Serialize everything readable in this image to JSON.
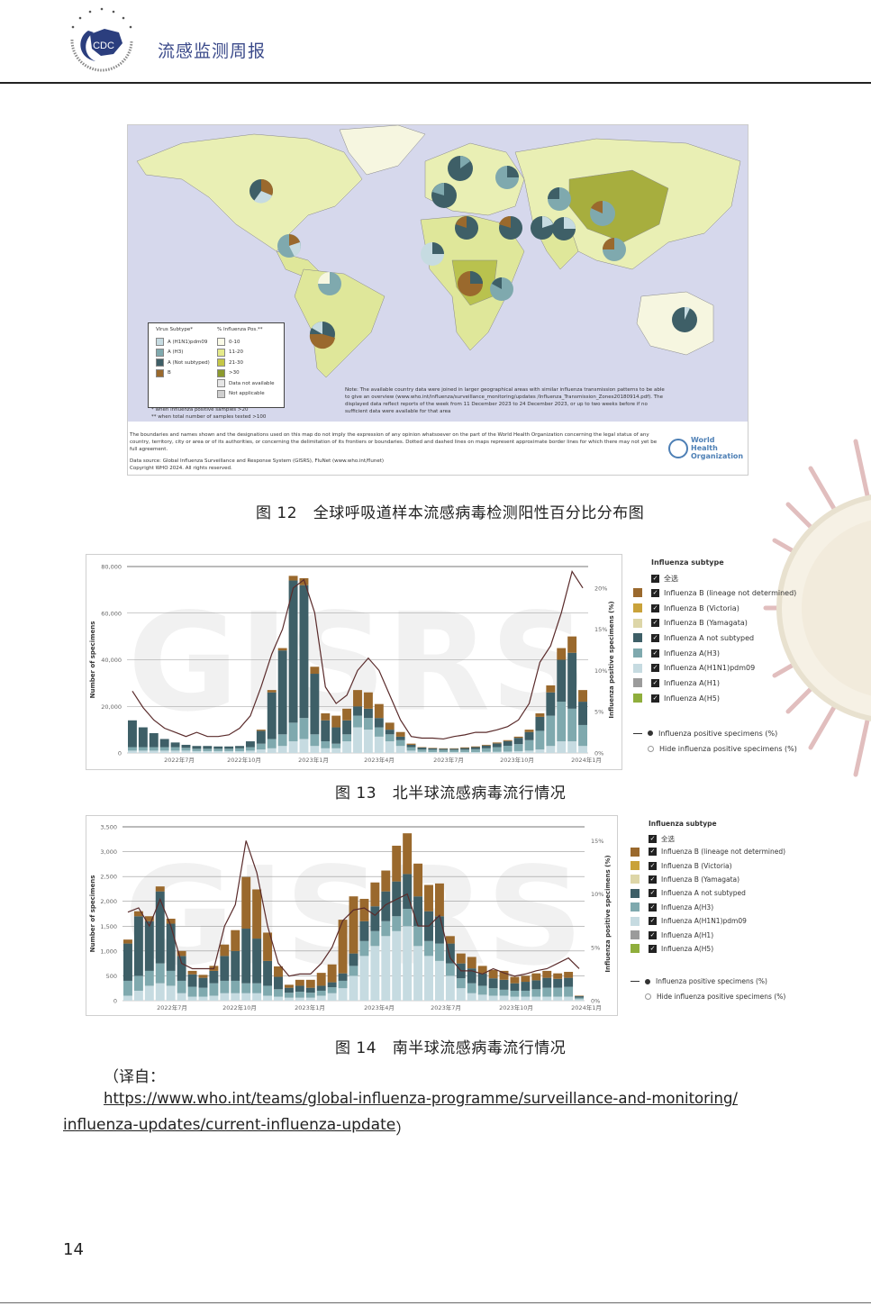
{
  "header": {
    "title": "流感监测周报",
    "logo_text": "CDC",
    "logo_ring_text": "CHINESE CENTER FOR DISEASE CONTROL AND PREVENTION"
  },
  "colors": {
    "h1n1": "#c6dbe1",
    "h3": "#7fa9ae",
    "anot": "#3e5f67",
    "b": "#9a692d",
    "victoria": "#c9a23a",
    "yamagata": "#ddd6a8",
    "h1": "#9b9b9b",
    "h5": "#8fae3c",
    "line": "#5a2b2b"
  },
  "figure12": {
    "caption": "图 12   全球呼吸道样本流感病毒检测阳性百分比分布图",
    "legend_subtype_title": "Virus Subtype*",
    "legend_subtypes": [
      "A (H1N1)pdm09",
      "A (H3)",
      "A (Not subtyped)",
      "B"
    ],
    "legend_pos_title": "% Influenza Pos.**",
    "legend_pos": [
      "0-10",
      "11-20",
      "21-30",
      ">30",
      "Data not available",
      "Not applicable"
    ],
    "foot1": "* when influenza positive samples >20",
    "foot2": "** when total number of samples tested >100",
    "note": "Note: The available country data were joined in larger geographical areas with similar influenza transmission patterns to be able to give an overview (www.who.int/influenza/surveillance_monitoring/updates /Influenza_Transmission_Zones20180914.pdf). The displayed data reflect reports of the week from 11 December 2023 to 24 December 2023, or up to two weeks before if no sufficient data were available for that area",
    "disclaimer": "The boundaries and names shown and the designations used on this map do not imply the expression of any opinion whatsoever on the part of the World Health Organization concerning the legal status of any country, territory, city or area or of its authorities, or concerning the delimitation of its frontiers or boundaries. Dotted and dashed lines on maps represent approximate border lines for which there may not yet be full agreement.",
    "source": "Data source: Global Influenza Surveillance and Response System (GISRS), FluNet (www.who.int/flunet)",
    "copyright": "Copyright WHO 2024. All rights reserved.",
    "who_logo": "World Health Organization"
  },
  "legend": {
    "title": "Influenza subtype",
    "select_all": "全选",
    "items": [
      "Influenza B (lineage not determined)",
      "Influenza B (Victoria)",
      "Influenza B (Yamagata)",
      "Influenza A not subtyped",
      "Influenza A(H3)",
      "Influenza A(H1N1)pdm09",
      "Influenza A(H1)",
      "Influenza A(H5)"
    ],
    "show_line": "Influenza positive specimens (%)",
    "hide_line": "Hide influenza positive specimens (%)"
  },
  "chart_data": [
    {
      "type": "bar",
      "title": "北半球流感病毒流行情况",
      "caption": "图 13   北半球流感病毒流行情况",
      "watermark": "GISRS",
      "ylabel": "Number of specimens",
      "y2label": "Influenza positive specimens (%)",
      "ylim": [
        0,
        80000
      ],
      "y2lim": [
        0,
        22.6
      ],
      "yticks": [
        "0",
        "20,000",
        "40,000",
        "60,000",
        "80,000"
      ],
      "y2ticks": [
        "0%",
        "5%",
        "10%",
        "15%",
        "20%"
      ],
      "xticks": [
        "2022年7月",
        "2022年10月",
        "2023年1月",
        "2023年4月",
        "2023年7月",
        "2023年10月",
        "2024年1月"
      ],
      "stack_order": [
        "h1n1",
        "h3",
        "anot",
        "b"
      ],
      "unit_scale": 1000,
      "stacks": [
        [
          1,
          1.5,
          11.5,
          0
        ],
        [
          1,
          1.5,
          8.5,
          0
        ],
        [
          1,
          1.5,
          6,
          0
        ],
        [
          1,
          1.5,
          3.5,
          0
        ],
        [
          1,
          1.5,
          2,
          0
        ],
        [
          1,
          1.2,
          1.3,
          0
        ],
        [
          0.8,
          1,
          1.2,
          0
        ],
        [
          0.8,
          1,
          1.2,
          0
        ],
        [
          0.8,
          1,
          1,
          0
        ],
        [
          0.8,
          1,
          1,
          0
        ],
        [
          0.8,
          1.2,
          1,
          0
        ],
        [
          1,
          1.5,
          2.5,
          0
        ],
        [
          1.5,
          2.5,
          5.5,
          0.5
        ],
        [
          2,
          4,
          20,
          1
        ],
        [
          3,
          5,
          36,
          1
        ],
        [
          5,
          8,
          61,
          2
        ],
        [
          6,
          9,
          57,
          3
        ],
        [
          3,
          5,
          26,
          3
        ],
        [
          2,
          3,
          9,
          3
        ],
        [
          2,
          2,
          7,
          5
        ],
        [
          5,
          3,
          6,
          5
        ],
        [
          11,
          5,
          4,
          7
        ],
        [
          10,
          5,
          4,
          7
        ],
        [
          7,
          4,
          4,
          6
        ],
        [
          5,
          3,
          2,
          3
        ],
        [
          3,
          2.5,
          1.5,
          2
        ],
        [
          1,
          1.5,
          1,
          0.5
        ],
        [
          0.5,
          1,
          0.8,
          0.2
        ],
        [
          0.4,
          1,
          0.6,
          0.2
        ],
        [
          0.4,
          0.9,
          0.5,
          0.2
        ],
        [
          0.4,
          0.9,
          0.5,
          0.2
        ],
        [
          0.4,
          1,
          0.7,
          0.3
        ],
        [
          0.4,
          1.2,
          0.9,
          0.3
        ],
        [
          0.5,
          1.5,
          1.2,
          0.3
        ],
        [
          0.5,
          2,
          1.6,
          0.4
        ],
        [
          0.6,
          2.5,
          2,
          0.4
        ],
        [
          0.8,
          3,
          2.7,
          0.5
        ],
        [
          1,
          4.5,
          3.5,
          1
        ],
        [
          1.5,
          8,
          6,
          1.5
        ],
        [
          3,
          13,
          10,
          3
        ],
        [
          5,
          17,
          18,
          5
        ],
        [
          5,
          14,
          24,
          7
        ],
        [
          3,
          9,
          10,
          5
        ]
      ],
      "positive_pct": [
        7.5,
        5.5,
        4,
        3,
        2.5,
        2,
        2.5,
        2,
        2,
        2.2,
        3,
        4.5,
        8,
        12,
        15,
        20,
        21,
        17,
        8,
        6,
        7,
        10,
        11.5,
        10,
        7,
        4,
        2,
        1.8,
        1.8,
        1.7,
        2,
        2.2,
        2.5,
        2.5,
        2.8,
        3.2,
        4,
        6,
        11,
        13,
        17,
        22,
        20
      ]
    },
    {
      "type": "bar",
      "title": "南半球流感病毒流行情况",
      "caption": "图 14   南半球流感病毒流行情况",
      "watermark": "GISRS",
      "ylabel": "Number of specimens",
      "y2label": "Influenza positive specimens (%)",
      "ylim": [
        0,
        3500
      ],
      "y2lim": [
        0,
        16.3
      ],
      "yticks": [
        "0",
        "500",
        "1,000",
        "1,500",
        "2,000",
        "2,500",
        "3,000",
        "3,500"
      ],
      "y2ticks": [
        "0%",
        "5%",
        "10%",
        "15%"
      ],
      "xticks": [
        "2022年7月",
        "2022年10月",
        "2023年1月",
        "2023年4月",
        "2023年7月",
        "2023年10月",
        "2024年1月"
      ],
      "stack_order": [
        "h1n1",
        "h3",
        "anot",
        "b"
      ],
      "unit_scale": 1,
      "stacks": [
        [
          100,
          300,
          750,
          80
        ],
        [
          200,
          300,
          1200,
          100
        ],
        [
          300,
          300,
          1000,
          100
        ],
        [
          350,
          400,
          1450,
          100
        ],
        [
          300,
          300,
          950,
          100
        ],
        [
          150,
          250,
          500,
          100
        ],
        [
          80,
          200,
          250,
          70
        ],
        [
          80,
          180,
          200,
          60
        ],
        [
          100,
          250,
          250,
          100
        ],
        [
          150,
          250,
          500,
          230
        ],
        [
          150,
          250,
          600,
          420
        ],
        [
          150,
          200,
          1100,
          1040
        ],
        [
          150,
          200,
          900,
          990
        ],
        [
          100,
          200,
          500,
          570
        ],
        [
          80,
          150,
          250,
          210
        ],
        [
          60,
          100,
          100,
          60
        ],
        [
          60,
          120,
          120,
          120
        ],
        [
          60,
          100,
          100,
          160
        ],
        [
          100,
          100,
          100,
          260
        ],
        [
          150,
          120,
          100,
          360
        ],
        [
          250,
          150,
          150,
          1080
        ],
        [
          500,
          200,
          250,
          1150
        ],
        [
          900,
          300,
          400,
          450
        ],
        [
          1100,
          300,
          500,
          480
        ],
        [
          1300,
          300,
          600,
          420
        ],
        [
          1400,
          300,
          700,
          720
        ],
        [
          1500,
          350,
          700,
          820
        ],
        [
          1100,
          400,
          600,
          660
        ],
        [
          900,
          300,
          600,
          530
        ],
        [
          800,
          350,
          550,
          660
        ],
        [
          500,
          250,
          400,
          150
        ],
        [
          250,
          200,
          300,
          200
        ],
        [
          150,
          200,
          300,
          230
        ],
        [
          120,
          180,
          250,
          150
        ],
        [
          100,
          150,
          200,
          170
        ],
        [
          100,
          120,
          200,
          180
        ],
        [
          80,
          120,
          150,
          130
        ],
        [
          80,
          120,
          180,
          120
        ],
        [
          80,
          150,
          180,
          140
        ],
        [
          80,
          180,
          200,
          140
        ],
        [
          80,
          180,
          180,
          110
        ],
        [
          80,
          200,
          180,
          120
        ],
        [
          30,
          30,
          30,
          10
        ]
      ],
      "positive_pct": [
        8.3,
        8.7,
        7,
        9.5,
        7,
        3.5,
        3,
        3,
        3,
        7,
        9,
        15,
        12,
        7,
        3.5,
        2.3,
        2.5,
        2.5,
        3.5,
        5,
        7.5,
        8.5,
        8.7,
        8,
        9,
        9.5,
        10,
        7,
        7,
        8,
        4,
        2.8,
        2.8,
        2.5,
        3,
        2.6,
        2.3,
        2.5,
        2.8,
        3,
        3.5,
        4,
        3
      ]
    }
  ],
  "source_note": {
    "prefix": "（译自：",
    "url_line1": "https://www.who.int/teams/global-influenza-programme/surveillance-and-monitoring/",
    "url_line2": "influenza-updates/current-influenza-update",
    "suffix": "）"
  },
  "page_number": "14"
}
